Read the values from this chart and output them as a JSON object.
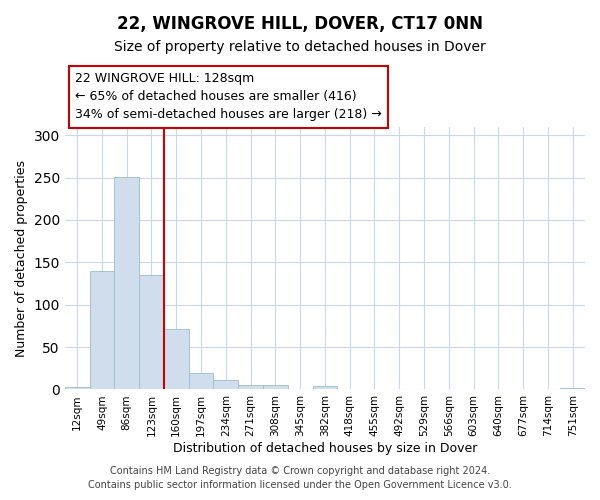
{
  "title": "22, WINGROVE HILL, DOVER, CT17 0NN",
  "subtitle": "Size of property relative to detached houses in Dover",
  "xlabel": "Distribution of detached houses by size in Dover",
  "ylabel": "Number of detached properties",
  "bar_color": "#cfdded",
  "bar_edge_color": "#9bbcce",
  "annotation_box_color": "#cc0000",
  "vline_color": "#cc0000",
  "grid_color": "#c8d8e8",
  "footer1": "Contains HM Land Registry data © Crown copyright and database right 2024.",
  "footer2": "Contains public sector information licensed under the Open Government Licence v3.0.",
  "annotation_title": "22 WINGROVE HILL: 128sqm",
  "annotation_line1": "← 65% of detached houses are smaller (416)",
  "annotation_line2": "34% of semi-detached houses are larger (218) →",
  "bin_labels": [
    "12sqm",
    "49sqm",
    "86sqm",
    "123sqm",
    "160sqm",
    "197sqm",
    "234sqm",
    "271sqm",
    "308sqm",
    "345sqm",
    "382sqm",
    "418sqm",
    "455sqm",
    "492sqm",
    "529sqm",
    "566sqm",
    "603sqm",
    "640sqm",
    "677sqm",
    "714sqm",
    "751sqm"
  ],
  "bar_heights": [
    3,
    140,
    251,
    135,
    71,
    19,
    11,
    5,
    5,
    0,
    4,
    0,
    0,
    0,
    1,
    0,
    0,
    0,
    0,
    0,
    2
  ],
  "vline_x": 3.5,
  "ylim": [
    0,
    310
  ],
  "yticks": [
    0,
    50,
    100,
    150,
    200,
    250,
    300
  ],
  "title_fontsize": 12,
  "subtitle_fontsize": 10,
  "ylabel_fontsize": 9,
  "xlabel_fontsize": 9,
  "tick_fontsize": 7.5,
  "annotation_fontsize": 9,
  "footer_fontsize": 7
}
